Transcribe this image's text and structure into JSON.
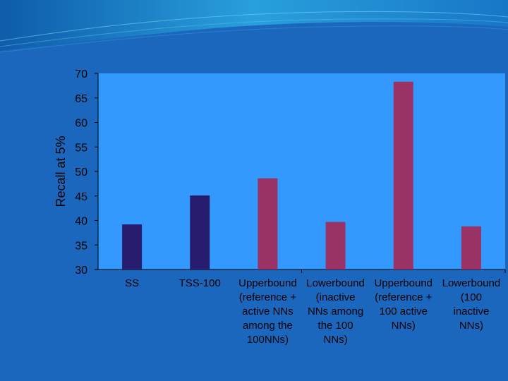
{
  "colors": {
    "background": "#1a67bd",
    "plot_area": "#3399ff",
    "series_blue": "#271c6e",
    "series_maroon": "#993366",
    "text": "#000000"
  },
  "chart_data": {
    "type": "bar",
    "title": "",
    "xlabel": "",
    "ylabel": "Recall at 5%",
    "ylim": [
      30,
      70
    ],
    "yticks": [
      30,
      35,
      40,
      45,
      50,
      55,
      60,
      65,
      70
    ],
    "grid": false,
    "legend": "none",
    "categories": [
      [
        "SS"
      ],
      [
        "TSS-100"
      ],
      [
        "Upperbound",
        "(reference +",
        "active NNs",
        "among the",
        "100NNs)"
      ],
      [
        "Lowerbound",
        "(inactive",
        "NNs among",
        "the 100",
        "NNs)"
      ],
      [
        "Upperbound",
        "(reference +",
        "100 active",
        "NNs)"
      ],
      [
        "Lowerbound",
        "(100",
        "inactive",
        "NNs)"
      ]
    ],
    "values": [
      39.2,
      45.1,
      48.6,
      39.7,
      68.3,
      38.8
    ],
    "bar_colors": [
      "#271c6e",
      "#271c6e",
      "#993366",
      "#993366",
      "#993366",
      "#993366"
    ]
  }
}
